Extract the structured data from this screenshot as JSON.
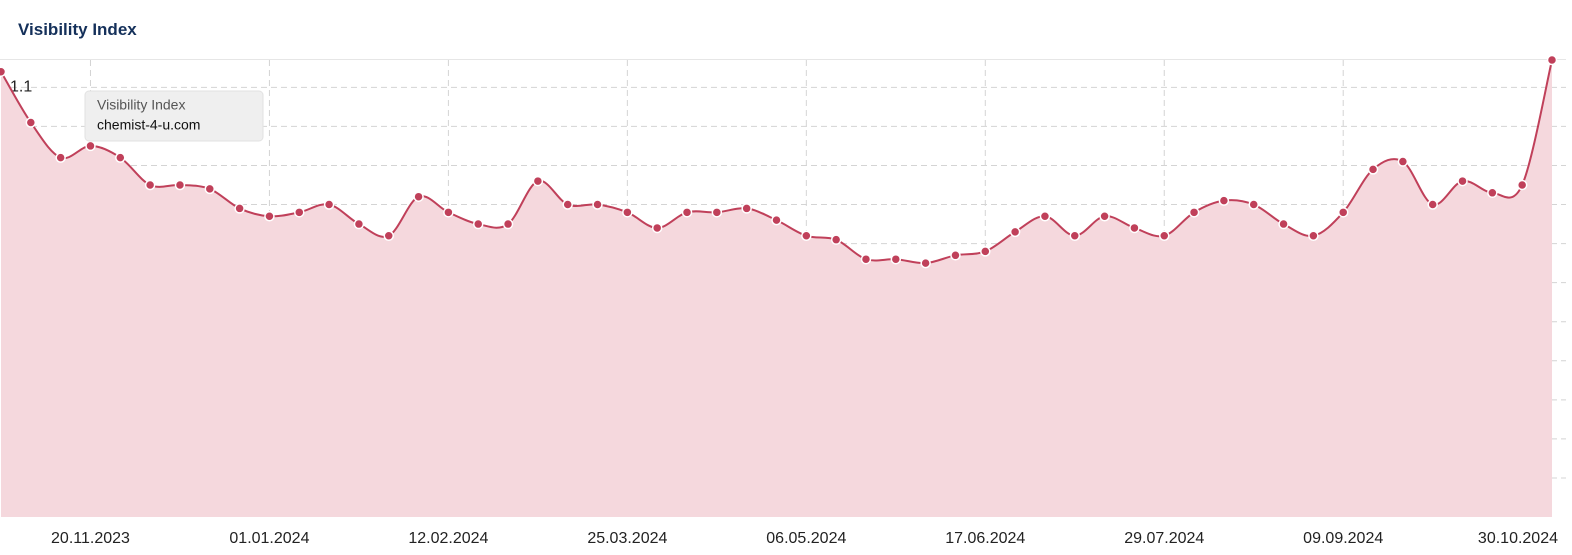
{
  "header": {
    "title": "Visibility Index"
  },
  "chart_data": {
    "type": "area",
    "tooltip": {
      "title": "Visibility Index",
      "series_name": "chemist-4-u.com"
    },
    "categories": [
      null,
      null,
      null,
      "20.11.2023",
      null,
      null,
      null,
      null,
      null,
      "01.01.2024",
      null,
      null,
      null,
      null,
      null,
      "12.02.2024",
      null,
      null,
      null,
      null,
      null,
      "25.03.2024",
      null,
      null,
      null,
      null,
      null,
      "06.05.2024",
      null,
      null,
      null,
      null,
      null,
      "17.06.2024",
      null,
      null,
      null,
      null,
      null,
      "29.07.2024",
      null,
      null,
      null,
      null,
      null,
      "09.09.2024",
      null,
      null,
      null,
      null,
      null,
      null,
      "30.10.2024"
    ],
    "series": [
      {
        "name": "chemist-4-u.com",
        "color": "#c0405a",
        "values": [
          1.14,
          1.01,
          0.92,
          0.95,
          0.92,
          0.85,
          0.85,
          0.84,
          0.79,
          0.77,
          0.78,
          0.8,
          0.75,
          0.72,
          0.82,
          0.78,
          0.75,
          0.75,
          0.86,
          0.8,
          0.8,
          0.78,
          0.74,
          0.78,
          0.78,
          0.79,
          0.76,
          0.72,
          0.71,
          0.66,
          0.66,
          0.65,
          0.67,
          0.68,
          0.73,
          0.77,
          0.72,
          0.77,
          0.74,
          0.72,
          0.78,
          0.81,
          0.8,
          0.75,
          0.72,
          0.78,
          0.89,
          0.91,
          0.8,
          0.86,
          0.83,
          0.85,
          1.17
        ]
      }
    ],
    "ylim": [
      0,
      1.17
    ],
    "yticks": [
      0.1,
      0.2,
      0.3,
      0.4,
      0.5,
      0.6,
      0.7,
      0.8,
      0.9,
      1,
      1.1
    ],
    "grid": true,
    "fill_color": "#f5d8dd"
  }
}
